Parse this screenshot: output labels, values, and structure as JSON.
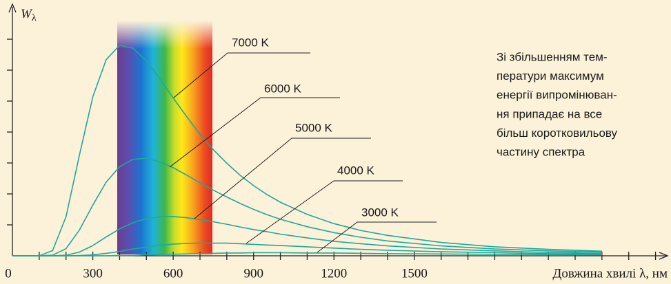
{
  "chart_data": {
    "type": "line",
    "y_label": {
      "main": "W",
      "sub": "λ"
    },
    "x_label": "Довжина хвилі λ, нм",
    "x": [
      0,
      100,
      150,
      200,
      250,
      300,
      350,
      400,
      450,
      500,
      550,
      600,
      650,
      700,
      750,
      800,
      850,
      900,
      950,
      1000,
      1100,
      1200,
      1300,
      1400,
      1600,
      1800,
      2000,
      2200
    ],
    "series": [
      {
        "name": "7000 K",
        "color": "#1fa89b",
        "values": [
          0,
          0,
          0.17,
          1.26,
          3.25,
          5.14,
          6.34,
          6.8,
          6.71,
          6.3,
          5.72,
          5.1,
          4.5,
          3.93,
          3.43,
          2.99,
          2.6,
          2.27,
          1.98,
          1.73,
          1.34,
          1.04,
          0.82,
          0.66,
          0.43,
          0.29,
          0.21,
          0.15
        ]
      },
      {
        "name": "6000 K",
        "color": "#1fa89b",
        "values": [
          0,
          0,
          0.02,
          0.23,
          0.83,
          1.64,
          2.38,
          2.88,
          3.12,
          3.15,
          3.04,
          2.85,
          2.61,
          2.36,
          2.12,
          1.9,
          1.69,
          1.5,
          1.33,
          1.18,
          0.94,
          0.75,
          0.6,
          0.48,
          0.32,
          0.22,
          0.16,
          0.12
        ]
      },
      {
        "name": "5000 K",
        "color": "#1fa89b",
        "values": [
          0,
          0,
          0,
          0.02,
          0.12,
          0.33,
          0.61,
          0.87,
          1.07,
          1.2,
          1.26,
          1.27,
          1.23,
          1.17,
          1.1,
          1.02,
          0.93,
          0.85,
          0.78,
          0.7,
          0.58,
          0.47,
          0.39,
          0.32,
          0.22,
          0.16,
          0.11,
          0.08
        ]
      },
      {
        "name": "4000 K",
        "color": "#1fa89b",
        "values": [
          0,
          0,
          0,
          0,
          0.01,
          0.03,
          0.08,
          0.14,
          0.22,
          0.28,
          0.34,
          0.38,
          0.4,
          0.41,
          0.41,
          0.41,
          0.39,
          0.37,
          0.35,
          0.33,
          0.29,
          0.25,
          0.21,
          0.18,
          0.13,
          0.1,
          0.07,
          0.06
        ]
      },
      {
        "name": "3000 K",
        "color": "#1fa89b",
        "values": [
          0,
          0,
          0,
          0,
          0,
          0,
          0,
          0.01,
          0.01,
          0.03,
          0.04,
          0.05,
          0.06,
          0.07,
          0.08,
          0.09,
          0.09,
          0.1,
          0.1,
          0.1,
          0.09,
          0.09,
          0.08,
          0.07,
          0.06,
          0.05,
          0.04,
          0.03
        ]
      }
    ],
    "xlim": [
      0,
      2450
    ],
    "xticks": [
      0,
      300,
      600,
      900,
      1200,
      1500
    ],
    "x_minor_ticks": [
      100,
      200,
      400,
      500,
      700,
      800,
      1000,
      1100,
      1300,
      1400,
      1600,
      1700,
      1800,
      1900,
      2000,
      2100,
      2200,
      2300,
      2400
    ],
    "ylim": [
      0,
      8
    ],
    "yticks": [
      1,
      2,
      3,
      4,
      5,
      6,
      7
    ],
    "annotation": [
      "Зі збільшенням тем-",
      "ператури максимум",
      "енергії випромінюван-",
      "ня припадає на все",
      "більш коротковильову",
      "частину спектра"
    ]
  }
}
